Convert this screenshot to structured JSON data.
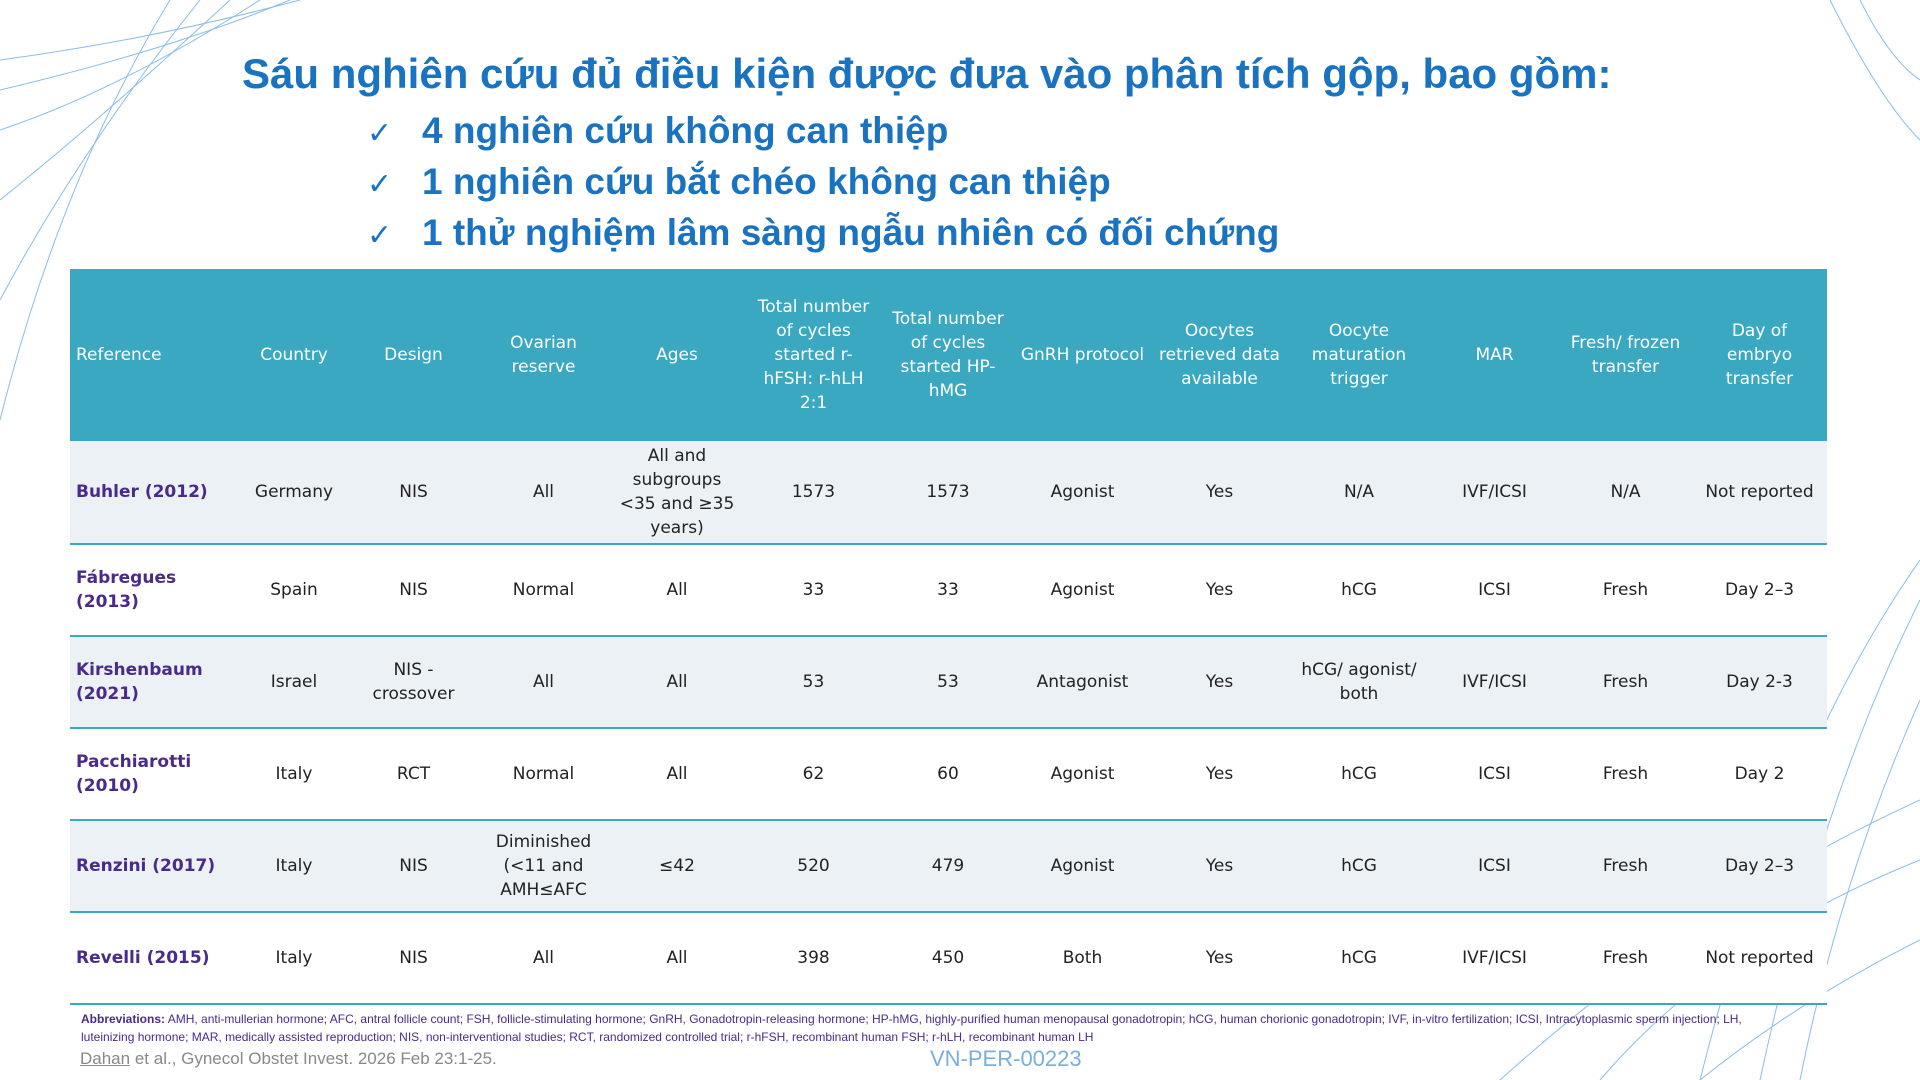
{
  "title": "Sáu nghiên cứu đủ điều kiện được đưa vào phân tích gộp, bao gồm:",
  "bullets": [
    "4 nghiên cứu không can thiệp",
    "1 nghiên cứu bắt chéo không can thiệp",
    "1 thử nghiệm lâm sàng ngẫu nhiên có đối chứng"
  ],
  "table": {
    "header": [
      "Reference",
      "Country",
      "Design",
      "Ovarian reserve",
      "Ages",
      "Total number of cycles started r-hFSH: r-hLH 2:1",
      "Total number of cycles started HP-hMG",
      "GnRH protocol",
      "Oocytes retrieved data available",
      "Oocyte maturation trigger",
      "MAR",
      "Fresh/ frozen transfer",
      "Day of embryo transfer"
    ],
    "rows": [
      [
        "Buhler (2012)",
        "Germany",
        "NIS",
        "All",
        "All and subgroups <35 and ≥35 years)",
        "1573",
        "1573",
        "Agonist",
        "Yes",
        "N/A",
        "IVF/ICSI",
        "N/A",
        "Not reported"
      ],
      [
        "Fábregues (2013)",
        "Spain",
        "NIS",
        "Normal",
        "All",
        "33",
        "33",
        "Agonist",
        "Yes",
        "hCG",
        "ICSI",
        "Fresh",
        "Day 2–3"
      ],
      [
        "Kirshenbaum (2021)",
        "Israel",
        "NIS - crossover",
        "All",
        "All",
        "53",
        "53",
        "Antagonist",
        "Yes",
        "hCG/ agonist/ both",
        "IVF/ICSI",
        "Fresh",
        "Day 2-3"
      ],
      [
        "Pacchiarotti (2010)",
        "Italy",
        "RCT",
        "Normal",
        "All",
        "62",
        "60",
        "Agonist",
        "Yes",
        "hCG",
        "ICSI",
        "Fresh",
        "Day 2"
      ],
      [
        "Renzini (2017)",
        "Italy",
        "NIS",
        "Diminished (<11 and AMH≤AFC",
        "≤42",
        "520",
        "479",
        "Agonist",
        "Yes",
        "hCG",
        "ICSI",
        "Fresh",
        "Day 2–3"
      ],
      [
        "Revelli (2015)",
        "Italy",
        "NIS",
        "All",
        "All",
        "398",
        "450",
        "Both",
        "Yes",
        "hCG",
        "IVF/ICSI",
        "Fresh",
        "Not reported"
      ]
    ]
  },
  "abbreviations": {
    "label": "Abbreviations:",
    "text": "AMH, anti-mullerian hormone; AFC, antral follicle count; FSH, follicle-stimulating hormone; GnRH, Gonadotropin-releasing hormone; HP-hMG, highly-purified human menopausal gonadotropin; hCG, human chorionic gonadotropin; IVF, in-vitro fertilization; ICSI, Intracytoplasmic sperm injection; LH, luteinizing hormone; MAR, medically assisted reproduction; NIS, non-interventional studies; RCT, randomized controlled trial; r-hFSH, recombinant human FSH; r-hLH, recombinant human LH"
  },
  "citation": {
    "author": "Dahan",
    "rest": " et al., Gynecol Obstet Invest. 2026 Feb 23:1-25."
  },
  "code": "VN-PER-00223"
}
